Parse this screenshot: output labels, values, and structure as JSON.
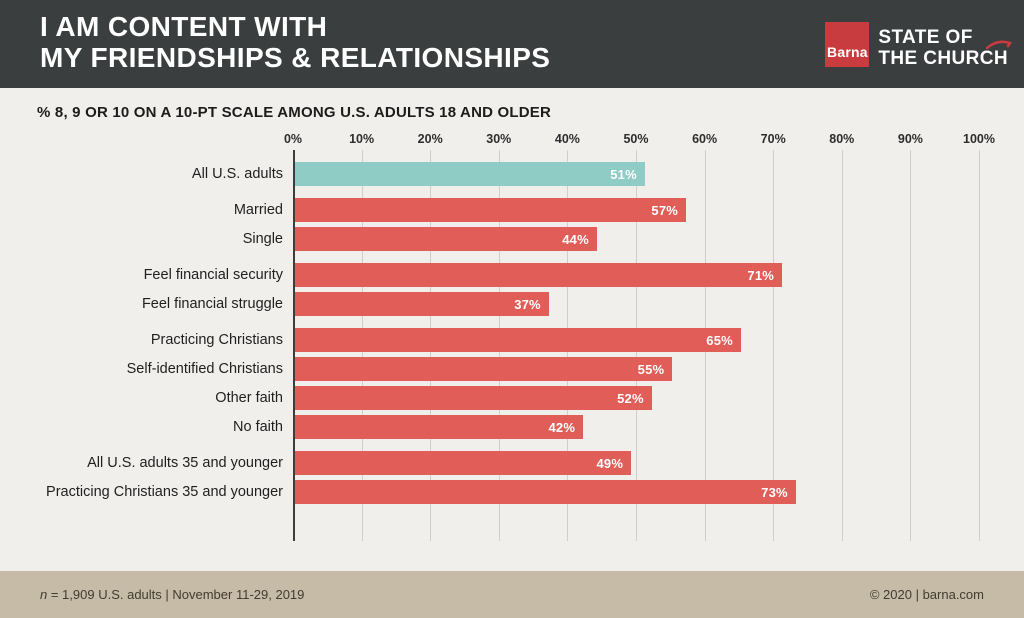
{
  "header": {
    "title_line1": "I AM CONTENT WITH",
    "title_line2": "MY FRIENDSHIPS & RELATIONSHIPS",
    "bg_color": "#3a3e3e",
    "logo": {
      "barna_label": "Barna",
      "brand_line1": "STATE OF",
      "brand_line2": "THE CHURCH",
      "square_color": "#c83c3f"
    }
  },
  "subtitle": "% 8, 9 OR 10 ON A 10-PT SCALE AMONG U.S. ADULTS 18 AND OLDER",
  "chart_data": {
    "type": "bar",
    "orientation": "horizontal",
    "title": "I AM CONTENT WITH MY FRIENDSHIPS & RELATIONSHIPS",
    "subtitle": "% 8, 9 OR 10 ON A 10-PT SCALE AMONG U.S. ADULTS 18 AND OLDER",
    "xlim": [
      0,
      100
    ],
    "x_ticks": [
      "0%",
      "10%",
      "20%",
      "30%",
      "40%",
      "50%",
      "60%",
      "70%",
      "80%",
      "90%",
      "100%"
    ],
    "grid": true,
    "value_suffix": "%",
    "bar_color": "#e05d58",
    "highlight_color": "#8fccc6",
    "groups": [
      {
        "rows": [
          {
            "label": "All U.S. adults",
            "value": 51,
            "highlight": true
          }
        ]
      },
      {
        "rows": [
          {
            "label": "Married",
            "value": 57
          },
          {
            "label": "Single",
            "value": 44
          }
        ]
      },
      {
        "rows": [
          {
            "label": "Feel financial security",
            "value": 71
          },
          {
            "label": "Feel financial struggle",
            "value": 37
          }
        ]
      },
      {
        "rows": [
          {
            "label": "Practicing Christians",
            "value": 65
          },
          {
            "label": "Self-identified Christians",
            "value": 55
          },
          {
            "label": "Other faith",
            "value": 52
          },
          {
            "label": "No faith",
            "value": 42
          }
        ]
      },
      {
        "rows": [
          {
            "label": "All U.S. adults 35 and younger",
            "value": 49
          },
          {
            "label": "Practicing Christians 35 and younger",
            "value": 73
          }
        ]
      }
    ]
  },
  "footer": {
    "n_label": "n",
    "left_text": " = 1,909 U.S. adults | November 11-29, 2019",
    "right": "© 2020 | barna.com",
    "bg_color": "#c6bba7"
  }
}
